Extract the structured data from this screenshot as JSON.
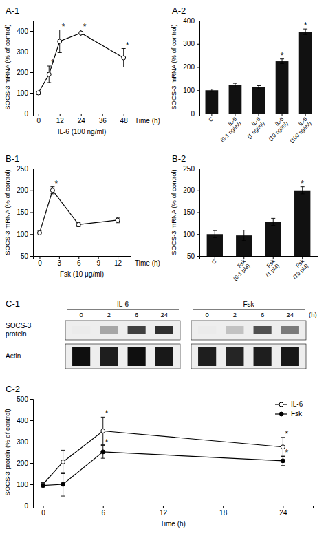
{
  "chart_data": [
    {
      "type": "line",
      "title": "A-1",
      "x": [
        0,
        6,
        12,
        24,
        48
      ],
      "values": [
        100,
        190,
        350,
        390,
        270
      ],
      "yerr": [
        8,
        40,
        55,
        15,
        45
      ],
      "star": [
        false,
        true,
        true,
        true,
        true
      ],
      "star_label": "*",
      "xlabel": "IL-6 (100 ng/ml)",
      "xlabel2": "Time (h)",
      "ylabel": "SOCS-3 mRNA (% of control)",
      "xlim": [
        -3,
        52
      ],
      "xticks": [
        0,
        12,
        24,
        36,
        48
      ],
      "ylim": [
        0,
        450
      ],
      "yticks": [
        0,
        100,
        200,
        300,
        400
      ],
      "color": "#000000",
      "marker": "open-circle"
    },
    {
      "type": "bar",
      "title": "A-2",
      "categories": [
        "C",
        "IL-6\n(0·1 ng/ml)",
        "IL-6\n(1 ng/ml)",
        "IL-6\n(10 ng/ml)",
        "IL-6\n(100 ng/ml)"
      ],
      "values": [
        100,
        122,
        113,
        225,
        352
      ],
      "yerr": [
        5,
        8,
        7,
        10,
        12
      ],
      "star": [
        false,
        false,
        false,
        true,
        true
      ],
      "star_label": "*",
      "ylabel": "SOCS-3 mRNA (% of control)",
      "ylim": [
        0,
        400
      ],
      "yticks": [
        0,
        100,
        200,
        300,
        400
      ],
      "color": "#111111"
    },
    {
      "type": "line",
      "title": "B-1",
      "x": [
        0,
        2,
        6,
        12
      ],
      "values": [
        103,
        200,
        122,
        132
      ],
      "yerr": [
        5,
        8,
        5,
        6
      ],
      "star": [
        false,
        true,
        false,
        false
      ],
      "star_label": "*",
      "xlabel": "Fsk (10 μg/ml)",
      "xlabel2": "Time (h)",
      "ylabel": "SOCS-3 mRNA (% of control)",
      "xlim": [
        -1,
        14
      ],
      "xticks": [
        0,
        3,
        6,
        9,
        12
      ],
      "ylim": [
        50,
        250
      ],
      "yticks": [
        50,
        100,
        150,
        200,
        250
      ],
      "color": "#000000",
      "marker": "open-circle"
    },
    {
      "type": "bar",
      "title": "B-2",
      "categories": [
        "C",
        "Fsk\n(0·1 μM)",
        "Fsk\n(1 μM)",
        "Fsk\n(10 μM)"
      ],
      "values": [
        100,
        97,
        128,
        200
      ],
      "yerr": [
        8,
        12,
        8,
        8
      ],
      "star": [
        false,
        false,
        false,
        true
      ],
      "star_label": "*",
      "ylabel": "SOCS-3 mRNA (% of control)",
      "ylim": [
        50,
        250
      ],
      "yticks": [
        50,
        100,
        150,
        200,
        250
      ],
      "color": "#111111"
    },
    {
      "type": "blot",
      "title": "C-1",
      "groups": [
        "IL-6",
        "Fsk"
      ],
      "categories": [
        "0",
        "2",
        "6",
        "24"
      ],
      "xlabel2": "(h)",
      "rows": [
        {
          "name": "SOCS-3\nprotein",
          "values": [
            0.15,
            0.45,
            0.8,
            0.85,
            0.15,
            0.35,
            0.75,
            0.6
          ]
        },
        {
          "name": "Actin",
          "values": [
            0.95,
            0.9,
            0.95,
            0.92,
            0.9,
            0.88,
            0.9,
            0.92
          ]
        }
      ],
      "zlim": [
        0,
        1
      ]
    },
    {
      "type": "line",
      "title": "C-2",
      "x": [
        0,
        2,
        6,
        24
      ],
      "series": [
        {
          "name": "IL-6",
          "values": [
            100,
            205,
            350,
            275
          ],
          "yerr": [
            8,
            55,
            65,
            45
          ],
          "star": [
            false,
            false,
            true,
            true
          ],
          "color": "#000000",
          "marker": "open-circle"
        },
        {
          "name": "Fsk",
          "values": [
            95,
            100,
            252,
            210
          ],
          "yerr": [
            8,
            55,
            30,
            22
          ],
          "star": [
            false,
            false,
            true,
            true
          ],
          "color": "#000000",
          "marker": "circle"
        }
      ],
      "star_label": "*",
      "xlabel": "Time (h)",
      "ylabel": "SOCS-3 protein (% of control)",
      "xlim": [
        -1,
        27
      ],
      "xticks": [
        0,
        6,
        12,
        18,
        24
      ],
      "ylim": [
        0,
        500
      ],
      "yticks": [
        0,
        100,
        200,
        300,
        400,
        500
      ],
      "legend": "upper right"
    }
  ]
}
